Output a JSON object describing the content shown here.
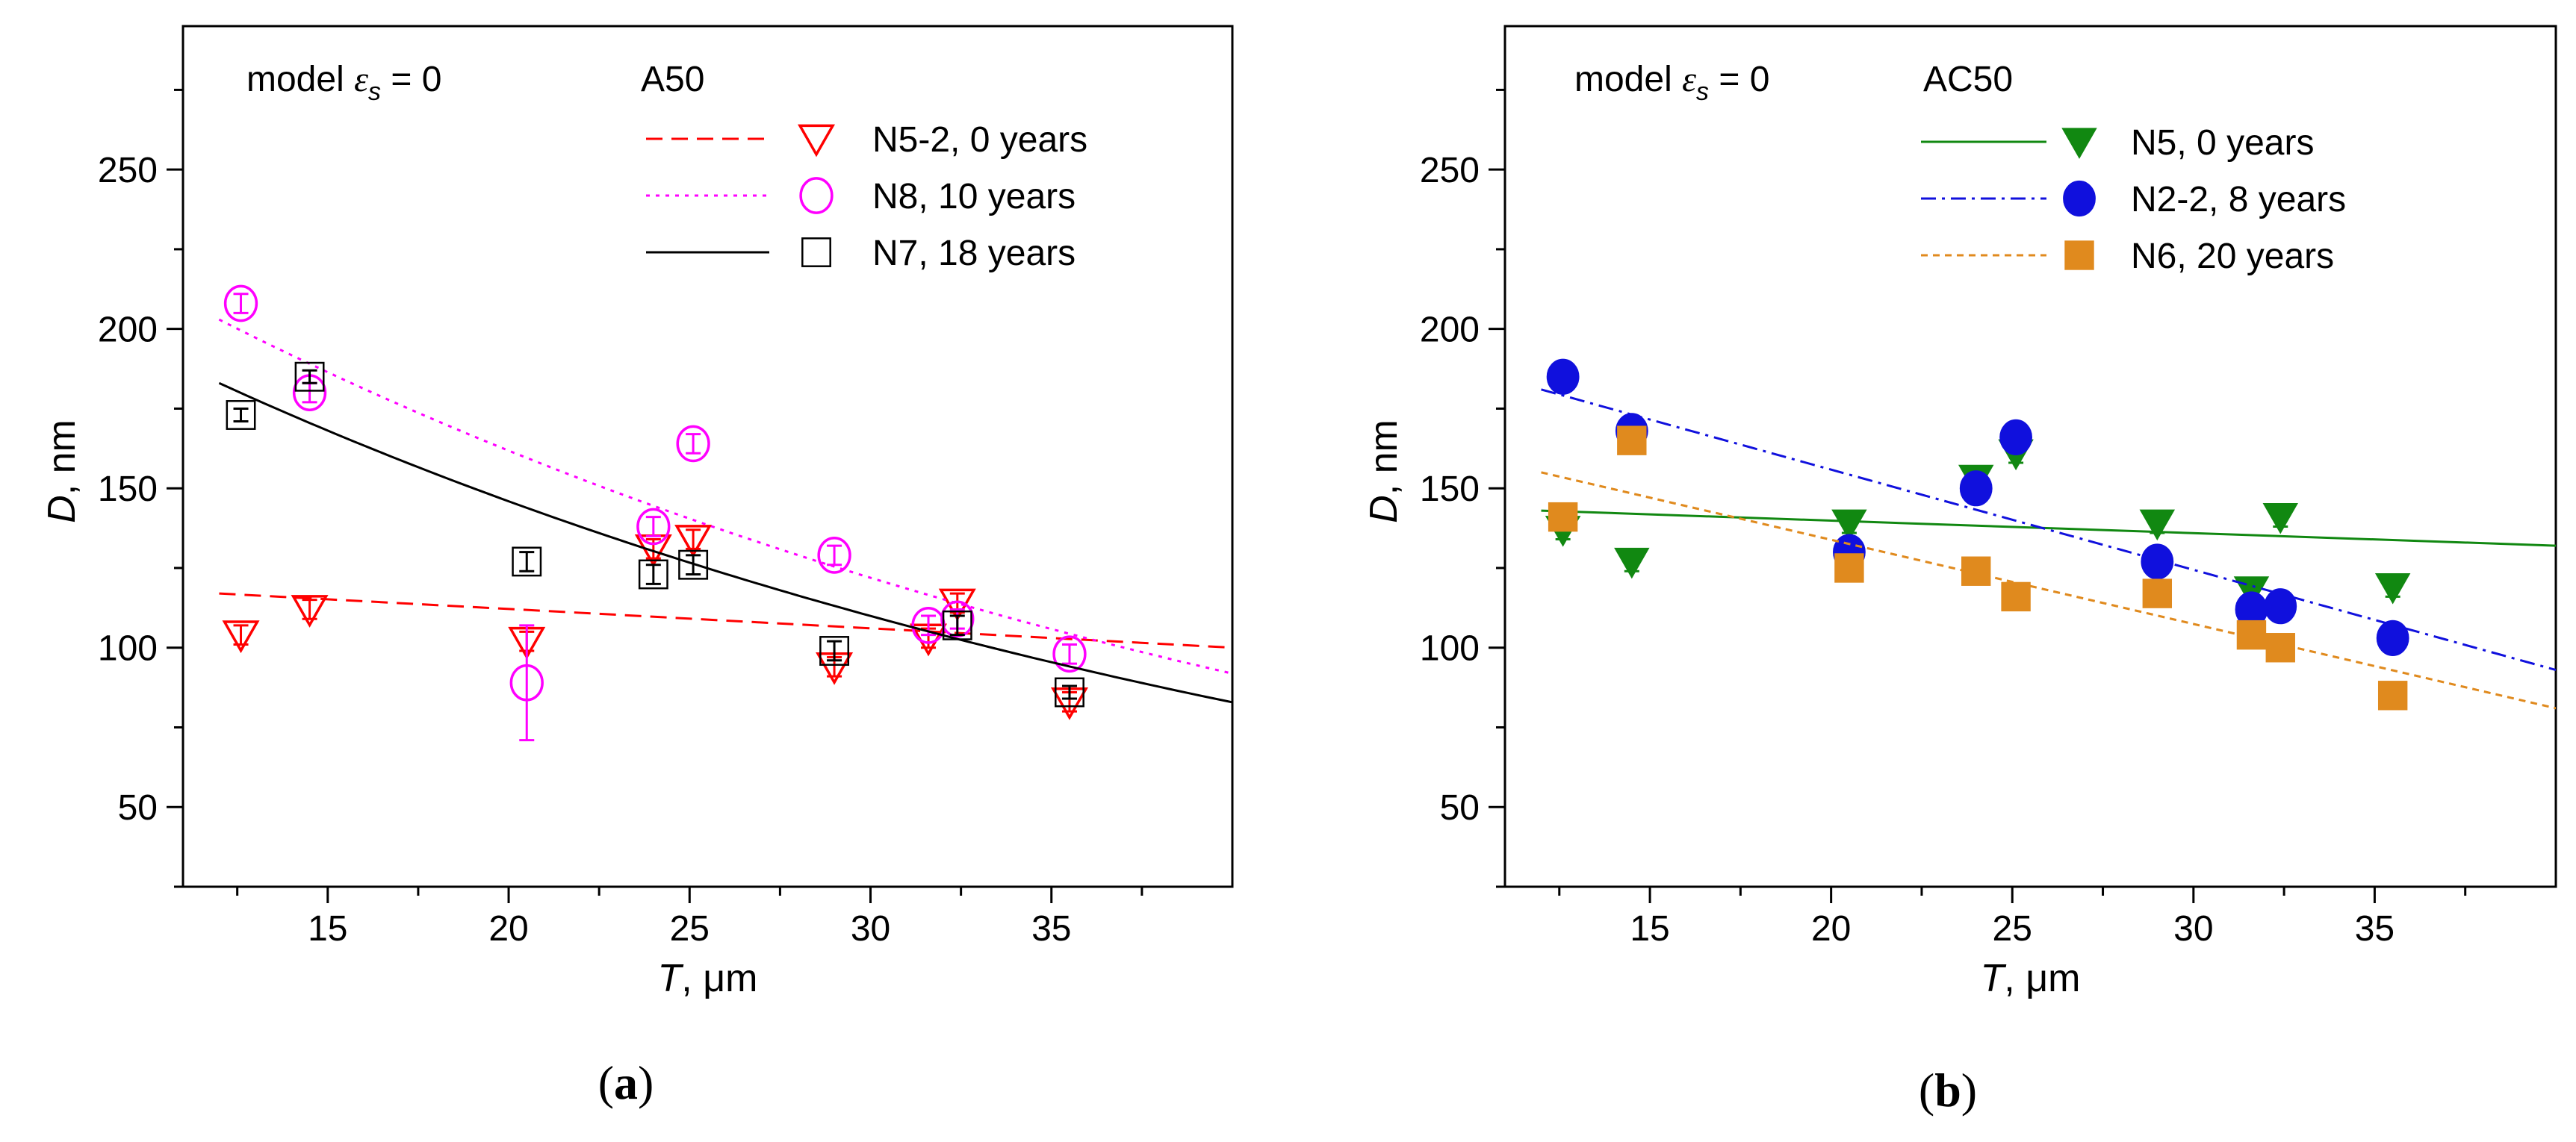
{
  "chart_data": [
    {
      "panel": "(a)",
      "panel_letter": "a",
      "type": "scatter",
      "model_annotation": {
        "prefix": "model ",
        "symbol": "ε",
        "subscript": "s",
        "suffix": " = 0"
      },
      "legend_title": "A50",
      "xlabel": {
        "var": "T",
        "unit": ", μm"
      },
      "ylabel": {
        "var": "D",
        "unit": ", nm"
      },
      "xlim": [
        11,
        40
      ],
      "ylim": [
        25,
        295
      ],
      "xticks": [
        15,
        20,
        25,
        30,
        35
      ],
      "yticks": [
        50,
        100,
        150,
        200,
        250
      ],
      "x_minor_step": 2.5,
      "y_minor_step": 25,
      "legend_position": "top-right",
      "series": [
        {
          "name": "N5-2, 0 years",
          "color": "#ff0000",
          "marker": "triangle-down-open",
          "line_style": "dashed",
          "points": [
            {
              "x": 12.6,
              "y": 104,
              "err": 3
            },
            {
              "x": 14.5,
              "y": 112,
              "err": 3
            },
            {
              "x": 20.5,
              "y": 102,
              "err": 3
            },
            {
              "x": 24.0,
              "y": 131,
              "err": 3
            },
            {
              "x": 25.1,
              "y": 134,
              "err": 3
            },
            {
              "x": 29.0,
              "y": 94,
              "err": 3
            },
            {
              "x": 31.6,
              "y": 103,
              "err": 3
            },
            {
              "x": 32.4,
              "y": 114,
              "err": 3
            },
            {
              "x": 35.5,
              "y": 83,
              "err": 3
            }
          ],
          "fit": {
            "kind": "linear",
            "from": [
              12,
              117
            ],
            "to": [
              40,
              100
            ]
          }
        },
        {
          "name": "N8, 10 years",
          "color": "#ff00ff",
          "marker": "circle-open",
          "line_style": "dotted",
          "points": [
            {
              "x": 12.6,
              "y": 208,
              "err": 3
            },
            {
              "x": 14.5,
              "y": 180,
              "err": 3
            },
            {
              "x": 20.5,
              "y": 89,
              "err": 18
            },
            {
              "x": 24.0,
              "y": 138,
              "err": 3
            },
            {
              "x": 25.1,
              "y": 164,
              "err": 3
            },
            {
              "x": 29.0,
              "y": 129,
              "err": 3
            },
            {
              "x": 31.6,
              "y": 107,
              "err": 3
            },
            {
              "x": 32.4,
              "y": 109,
              "err": 3
            },
            {
              "x": 35.5,
              "y": 98,
              "err": 3
            }
          ],
          "fit": {
            "kind": "exp",
            "a": 285,
            "b": 0.0283,
            "from": 12,
            "to": 40
          }
        },
        {
          "name": "N7, 18 years",
          "color": "#000000",
          "marker": "square-open",
          "line_style": "solid",
          "points": [
            {
              "x": 12.6,
              "y": 173,
              "err": 2
            },
            {
              "x": 14.5,
              "y": 185,
              "err": 2
            },
            {
              "x": 20.5,
              "y": 127,
              "err": 3
            },
            {
              "x": 24.0,
              "y": 123,
              "err": 3
            },
            {
              "x": 25.1,
              "y": 126,
              "err": 3
            },
            {
              "x": 29.0,
              "y": 99,
              "err": 3
            },
            {
              "x": 32.4,
              "y": 107,
              "err": 3
            },
            {
              "x": 35.5,
              "y": 86,
              "err": 2
            }
          ],
          "fit": {
            "kind": "exp",
            "a": 257,
            "b": 0.0283,
            "from": 12,
            "to": 40
          }
        }
      ]
    },
    {
      "panel": "(b)",
      "panel_letter": "b",
      "type": "scatter",
      "model_annotation": {
        "prefix": "model ",
        "symbol": "ε",
        "subscript": "s",
        "suffix": " = 0"
      },
      "legend_title": "AC50",
      "xlabel": {
        "var": "T",
        "unit": ", μm"
      },
      "ylabel": {
        "var": "D",
        "unit": ", nm"
      },
      "xlim": [
        11,
        40
      ],
      "ylim": [
        25,
        295
      ],
      "xticks": [
        15,
        20,
        25,
        30,
        35
      ],
      "yticks": [
        50,
        100,
        150,
        200,
        250
      ],
      "x_minor_step": 2.5,
      "y_minor_step": 25,
      "legend_position": "top-right",
      "series": [
        {
          "name": "N5, 0 years",
          "color": "#118811",
          "marker": "triangle-down-filled",
          "line_style": "solid",
          "points": [
            {
              "x": 12.6,
              "y": 137,
              "err": 3
            },
            {
              "x": 14.5,
              "y": 127,
              "err": 3
            },
            {
              "x": 20.5,
              "y": 139,
              "err": 3
            },
            {
              "x": 24.0,
              "y": 153,
              "err": 3
            },
            {
              "x": 25.1,
              "y": 161,
              "err": 3
            },
            {
              "x": 29.0,
              "y": 139,
              "err": 3
            },
            {
              "x": 31.6,
              "y": 118,
              "err": 3
            },
            {
              "x": 32.4,
              "y": 141,
              "err": 3
            },
            {
              "x": 35.5,
              "y": 119,
              "err": 3
            }
          ],
          "fit": {
            "kind": "linear",
            "from": [
              12,
              143
            ],
            "to": [
              40,
              132
            ]
          }
        },
        {
          "name": "N2-2, 8 years",
          "color": "#1010dd",
          "marker": "circle-filled",
          "line_style": "dashdot",
          "points": [
            {
              "x": 12.6,
              "y": 185,
              "err": 3
            },
            {
              "x": 14.5,
              "y": 168,
              "err": 2
            },
            {
              "x": 20.5,
              "y": 130,
              "err": 2
            },
            {
              "x": 24.0,
              "y": 150,
              "err": 2
            },
            {
              "x": 25.1,
              "y": 166,
              "err": 2
            },
            {
              "x": 29.0,
              "y": 127,
              "err": 2
            },
            {
              "x": 31.6,
              "y": 112,
              "err": 2
            },
            {
              "x": 32.4,
              "y": 113,
              "err": 2
            },
            {
              "x": 35.5,
              "y": 103,
              "err": 2
            }
          ],
          "fit": {
            "kind": "linear",
            "from": [
              12,
              181
            ],
            "to": [
              40,
              93
            ]
          }
        },
        {
          "name": "N6, 20 years",
          "color": "#e08a1e",
          "marker": "square-filled",
          "line_style": "shortdash",
          "points": [
            {
              "x": 12.6,
              "y": 141,
              "err": 0
            },
            {
              "x": 14.5,
              "y": 165,
              "err": 0
            },
            {
              "x": 20.5,
              "y": 125,
              "err": 0
            },
            {
              "x": 24.0,
              "y": 124,
              "err": 0
            },
            {
              "x": 25.1,
              "y": 116,
              "err": 0
            },
            {
              "x": 29.0,
              "y": 117,
              "err": 0
            },
            {
              "x": 31.6,
              "y": 104,
              "err": 0
            },
            {
              "x": 32.4,
              "y": 100,
              "err": 0
            },
            {
              "x": 35.5,
              "y": 85,
              "err": 0
            }
          ],
          "fit": {
            "kind": "linear",
            "from": [
              12,
              155
            ],
            "to": [
              40,
              81
            ]
          }
        }
      ]
    }
  ]
}
